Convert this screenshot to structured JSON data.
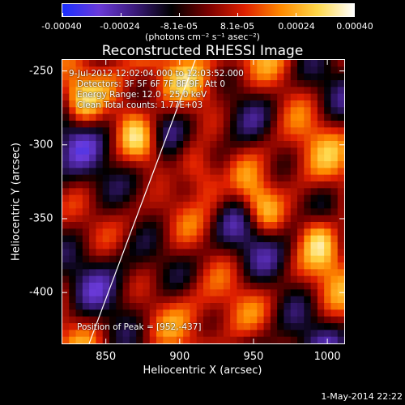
{
  "colorbar": {
    "ticks": [
      "-0.00040",
      "-0.00024",
      "-8.1e-05",
      "8.1e-05",
      "0.00024",
      "0.00040"
    ],
    "units": "(photons cm⁻² s⁻¹ asec⁻²)"
  },
  "annotations": {
    "time_range": "9-Jul-2012 12:02:04.000 to 12:03:52.000",
    "detectors": "Detectors: 3F 5F 6F 7F 8F 9F, Att 0",
    "energy": "Energy Range: 12.0 - 25.0 keV",
    "clean": "Clean     Total counts: 1.77E+03",
    "peak": "Position of Peak = [952,-437]"
  },
  "footer": {
    "timestamp": "1-May-2014 22:22"
  },
  "chart_data": {
    "type": "heatmap",
    "title": "Reconstructed RHESSI Image",
    "xlabel": "Heliocentric X (arcsec)",
    "ylabel": "Heliocentric Y (arcsec)",
    "xlim": [
      820,
      1012
    ],
    "ylim": [
      -435,
      -242
    ],
    "x_ticks": [
      "850",
      "900",
      "950",
      "1000"
    ],
    "y_ticks": [
      "-250",
      "-300",
      "-350",
      "-400"
    ],
    "x_tick_values": [
      850,
      900,
      950,
      1000
    ],
    "y_tick_values": [
      -250,
      -300,
      -350,
      -400
    ],
    "colormap": [
      "#1a2fff",
      "#6a3ad9",
      "#3a1a7a",
      "#000000",
      "#7a0000",
      "#e02000",
      "#ff8a00",
      "#ffd84a",
      "#ffffff"
    ],
    "value_range": [
      -0.0004,
      0.0004
    ],
    "peak": [
      952,
      -437
    ],
    "limb": [
      [
        837,
        -437
      ],
      [
        910,
        -242
      ]
    ]
  }
}
